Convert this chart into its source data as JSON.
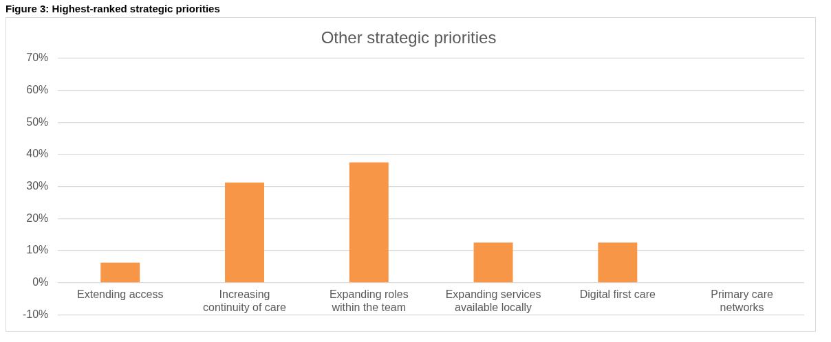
{
  "chart_data": {
    "type": "bar",
    "title": "Other strategic priorities",
    "annotations": [
      "Figure 3: Highest-ranked strategic priorities"
    ],
    "categories": [
      "Extending access",
      "Increasing continuity of care",
      "Expanding roles within the team",
      "Expanding services available locally",
      "Digital first care",
      "Primary care networks"
    ],
    "values": [
      6.25,
      31.25,
      37.5,
      12.5,
      12.5,
      0
    ],
    "color": "#f79646",
    "ylim": [
      -10,
      70
    ],
    "yticks": [
      {
        "value": -10,
        "label": "-10%"
      },
      {
        "value": 0,
        "label": "0%"
      },
      {
        "value": 10,
        "label": "10%"
      },
      {
        "value": 20,
        "label": "20%"
      },
      {
        "value": 30,
        "label": "30%"
      },
      {
        "value": 40,
        "label": "40%"
      },
      {
        "value": 50,
        "label": "50%"
      },
      {
        "value": 60,
        "label": "60%"
      },
      {
        "value": 70,
        "label": "70%"
      }
    ],
    "grid": "y"
  }
}
